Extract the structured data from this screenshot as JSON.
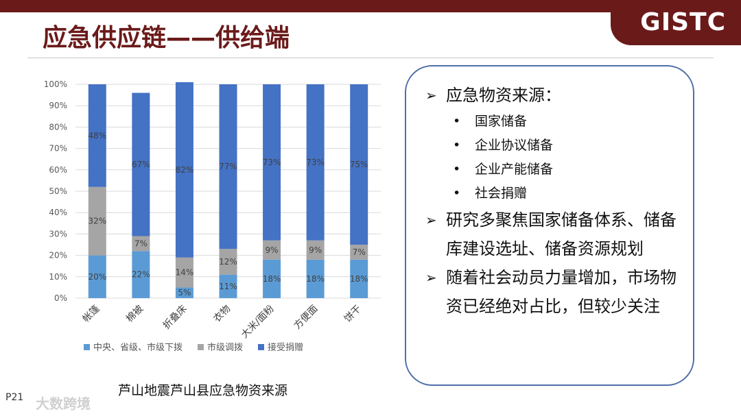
{
  "slide": {
    "title": "应急供应链——供给端",
    "logo": "GISTC",
    "page": "P21",
    "watermark": "大数跨境"
  },
  "chart_caption": "芦山地震芦山县应急物资来源",
  "chart_data": {
    "type": "bar",
    "stacked": true,
    "categories": [
      "帐篷",
      "棉被",
      "折叠床",
      "衣物",
      "大米/面粉",
      "方便面",
      "饼干"
    ],
    "series": [
      {
        "name": "中央、省级、市级下拨",
        "values": [
          20,
          22,
          5,
          11,
          18,
          18,
          18
        ],
        "labels": [
          "20%",
          "22%",
          "5%",
          "11%",
          "18%",
          "18%",
          "18%"
        ],
        "color": "#5b9bd5"
      },
      {
        "name": "市级调拨",
        "values": [
          32,
          7,
          14,
          12,
          9,
          9,
          7
        ],
        "labels": [
          "32%",
          "7%",
          "14%",
          "12%",
          "9%",
          "9%",
          "7%"
        ],
        "color": "#a5a5a5"
      },
      {
        "name": "接受捐赠",
        "values": [
          48,
          67,
          82,
          77,
          73,
          73,
          75
        ],
        "labels": [
          "48%",
          "67%",
          "82%",
          "77%",
          "73%",
          "73%",
          "75%"
        ],
        "color": "#4472c4"
      }
    ],
    "yticks": [
      "0%",
      "10%",
      "20%",
      "30%",
      "40%",
      "50%",
      "60%",
      "70%",
      "80%",
      "90%",
      "100%"
    ],
    "ylim": [
      0,
      100
    ],
    "grid": true,
    "legend": "bottom"
  },
  "panel": {
    "sections": [
      {
        "mark": "➢",
        "text": "应急物资来源：",
        "items": [
          "国家储备",
          "企业协议储备",
          "企业产能储备",
          "社会捐赠"
        ]
      },
      {
        "mark": "➢",
        "text": "研究多聚焦国家储备体系、储备库建设选址、储备资源规划",
        "items": []
      },
      {
        "mark": "➢",
        "text": "随着社会动员力量增加，市场物资已经绝对占比，但较少关注",
        "items": []
      }
    ]
  }
}
